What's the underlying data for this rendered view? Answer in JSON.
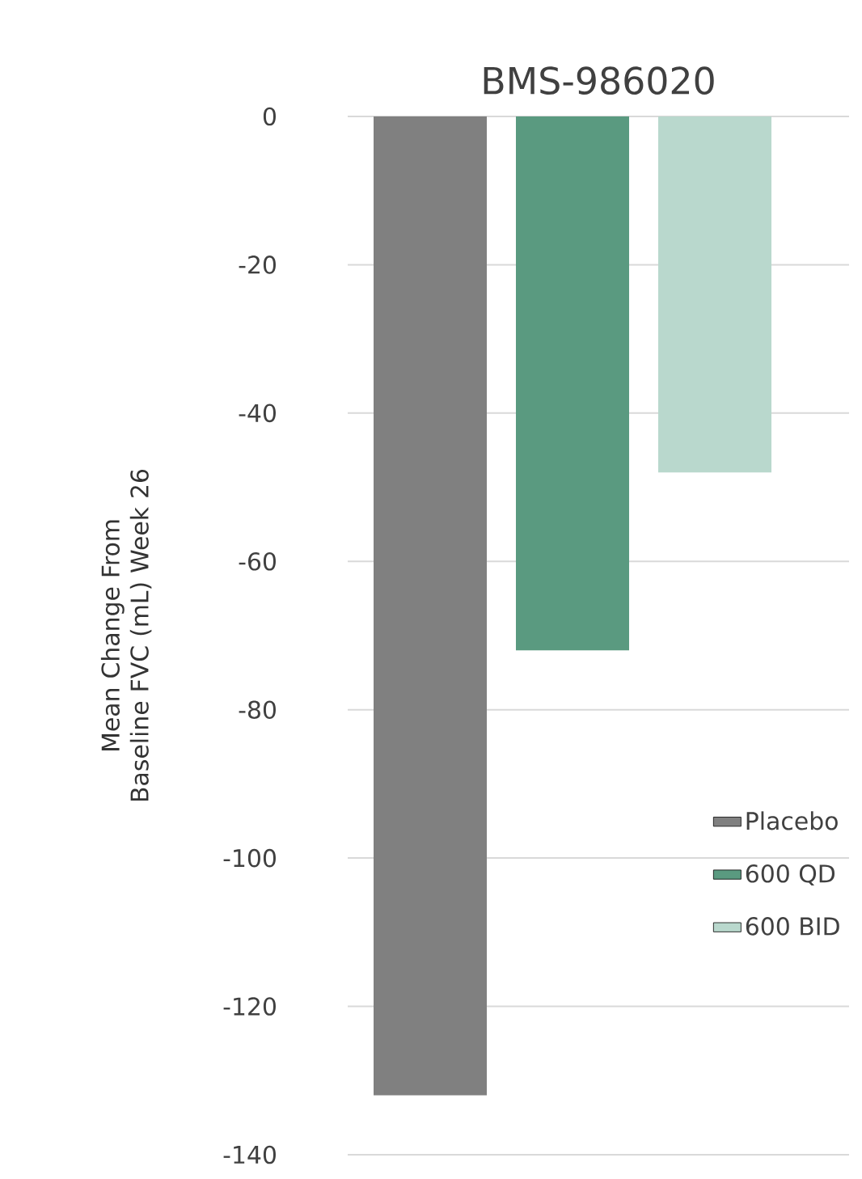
{
  "chart_data": {
    "type": "bar",
    "title": "BMS-986020",
    "ylabel": "Mean Change From Baseline FVC (mL) Week 26",
    "categories": [
      null
    ],
    "series": [
      {
        "name": "Placebo",
        "color": "#808080",
        "values": [
          -132
        ]
      },
      {
        "name": "600 QD",
        "color": "#5a9a80",
        "values": [
          -72
        ]
      },
      {
        "name": "600 BID",
        "color": "#b9d8cd",
        "values": [
          -48
        ]
      }
    ],
    "ylim": [
      -140,
      0
    ],
    "yticks": [
      0,
      -20,
      -40,
      -60,
      -80,
      -100,
      -120,
      -140
    ],
    "grid": "y",
    "legend": "bottom right"
  }
}
